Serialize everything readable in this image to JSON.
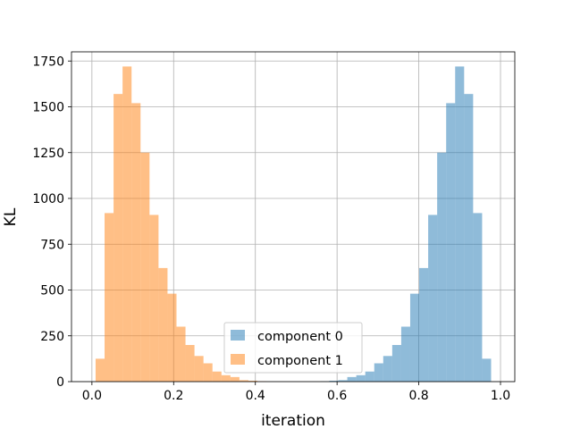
{
  "chart_data": {
    "type": "bar",
    "xlabel": "iteration",
    "ylabel": "KL",
    "xlim": [
      -0.05,
      1.035
    ],
    "ylim": [
      0,
      1800
    ],
    "xticks": [
      0.0,
      0.2,
      0.4,
      0.6,
      0.8,
      1.0
    ],
    "xtick_labels": [
      "0.0",
      "0.2",
      "0.4",
      "0.6",
      "0.8",
      "1.0"
    ],
    "yticks": [
      0,
      250,
      500,
      750,
      1000,
      1250,
      1500,
      1750
    ],
    "ytick_labels": [
      "0",
      "250",
      "500",
      "750",
      "1000",
      "1250",
      "1500",
      "1750"
    ],
    "grid": true,
    "legend_position": "lower-center",
    "bin_edges": [
      0.009,
      0.031,
      0.053,
      0.075,
      0.097,
      0.119,
      0.141,
      0.163,
      0.185,
      0.207,
      0.229,
      0.251,
      0.273,
      0.295,
      0.317,
      0.339,
      0.361,
      0.383,
      0.405,
      0.427,
      0.449,
      0.471,
      0.493,
      0.515,
      0.537,
      0.559,
      0.581,
      0.603,
      0.625,
      0.647,
      0.669,
      0.691,
      0.713,
      0.735,
      0.757,
      0.779,
      0.801,
      0.823,
      0.845,
      0.867,
      0.889,
      0.911,
      0.933,
      0.955,
      0.977,
      0.999
    ],
    "series": [
      {
        "name": "component 0",
        "color": "#1f77b4",
        "opacity": 0.5,
        "values": [
          0,
          0,
          0,
          0,
          0,
          0,
          0,
          0,
          0,
          0,
          0,
          0,
          0,
          0,
          0,
          0,
          0,
          0,
          0,
          0,
          0,
          0,
          0,
          0,
          0,
          2,
          5,
          8,
          25,
          35,
          55,
          100,
          140,
          200,
          300,
          480,
          620,
          910,
          1250,
          1520,
          1720,
          1570,
          920,
          125,
          0
        ]
      },
      {
        "name": "component 1",
        "color": "#ff7f0e",
        "opacity": 0.5,
        "values": [
          125,
          920,
          1570,
          1720,
          1520,
          1250,
          910,
          620,
          480,
          300,
          200,
          140,
          100,
          55,
          35,
          25,
          8,
          5,
          2,
          0,
          0,
          0,
          0,
          0,
          0,
          0,
          0,
          0,
          0,
          0,
          0,
          0,
          0,
          0,
          0,
          0,
          0,
          0,
          0,
          0,
          0,
          0,
          0,
          0,
          0
        ]
      }
    ]
  }
}
